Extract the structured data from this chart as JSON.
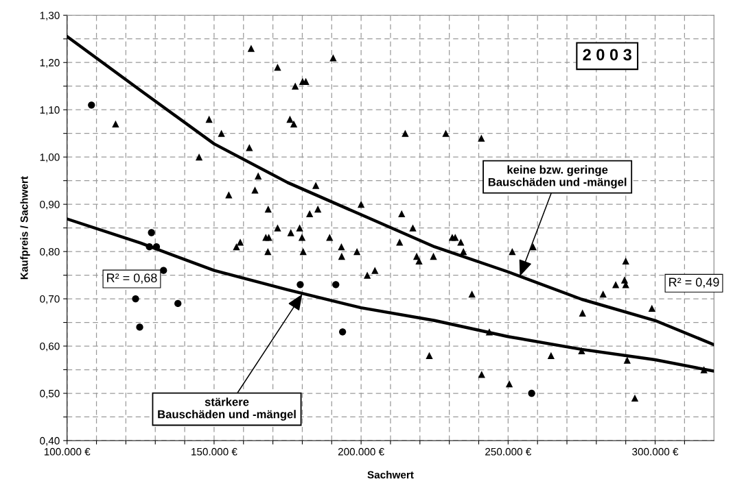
{
  "chart_data": {
    "type": "scatter",
    "xlabel": "Sachwert",
    "ylabel": "Kaufpreis / Sachwert",
    "title": "2 0 0 3",
    "xlim": [
      100000,
      320000
    ],
    "xticks": [
      {
        "value": 100000,
        "label": "100.000 €"
      },
      {
        "value": 110000,
        "label": null
      },
      {
        "value": 120000,
        "label": null
      },
      {
        "value": 130000,
        "label": null
      },
      {
        "value": 140000,
        "label": null
      },
      {
        "value": 150000,
        "label": "150.000 €"
      },
      {
        "value": 160000,
        "label": null
      },
      {
        "value": 170000,
        "label": null
      },
      {
        "value": 180000,
        "label": null
      },
      {
        "value": 190000,
        "label": null
      },
      {
        "value": 200000,
        "label": "200.000 €"
      },
      {
        "value": 210000,
        "label": null
      },
      {
        "value": 220000,
        "label": null
      },
      {
        "value": 230000,
        "label": null
      },
      {
        "value": 240000,
        "label": null
      },
      {
        "value": 250000,
        "label": "250.000 €"
      },
      {
        "value": 260000,
        "label": null
      },
      {
        "value": 270000,
        "label": null
      },
      {
        "value": 280000,
        "label": null
      },
      {
        "value": 290000,
        "label": null
      },
      {
        "value": 300000,
        "label": "300.000 €"
      },
      {
        "value": 310000,
        "label": null
      }
    ],
    "ylim": [
      0.4,
      1.3
    ],
    "yticks": [
      {
        "value": 0.4,
        "label": "0,40"
      },
      {
        "value": 0.45,
        "label": null
      },
      {
        "value": 0.5,
        "label": "0,50"
      },
      {
        "value": 0.55,
        "label": null
      },
      {
        "value": 0.6,
        "label": "0,60"
      },
      {
        "value": 0.65,
        "label": null
      },
      {
        "value": 0.7,
        "label": "0,70"
      },
      {
        "value": 0.75,
        "label": null
      },
      {
        "value": 0.8,
        "label": "0,80"
      },
      {
        "value": 0.85,
        "label": null
      },
      {
        "value": 0.9,
        "label": "0,90"
      },
      {
        "value": 0.95,
        "label": null
      },
      {
        "value": 1.0,
        "label": "1,00"
      },
      {
        "value": 1.05,
        "label": null
      },
      {
        "value": 1.1,
        "label": "1,10"
      },
      {
        "value": 1.15,
        "label": null
      },
      {
        "value": 1.2,
        "label": "1,20"
      },
      {
        "value": 1.25,
        "label": null
      },
      {
        "value": 1.3,
        "label": "1,30"
      }
    ],
    "grid": true,
    "legend": false,
    "series": [
      {
        "type": "scatter",
        "marker": "triangle",
        "color": "#000000",
        "x": [
          162600,
          171600,
          116500,
          148300,
          152500,
          162000,
          144900,
          165000,
          163900,
          155000,
          168400,
          171600,
          167600,
          168600,
          158900,
          157600,
          168300,
          190500,
          177600,
          180100,
          181200,
          175800,
          177100,
          215000,
          228800,
          240900,
          184600,
          200000,
          185300,
          182500,
          213800,
          176100,
          179100,
          217600,
          179900,
          189300,
          213100,
          231000,
          232000,
          233900,
          180300,
          193300,
          193400,
          198600,
          202100,
          204700,
          218900,
          219700,
          224600,
          234800,
          237700,
          243600,
          223200,
          241000,
          251400,
          258500,
          290000,
          289600,
          290000,
          286600,
          282300,
          275300,
          298900,
          264600,
          275000,
          290500,
          316600,
          250400,
          293100
        ],
        "values": [
          1.23,
          1.19,
          1.07,
          1.08,
          1.05,
          1.02,
          1.0,
          0.96,
          0.93,
          0.92,
          0.89,
          0.85,
          0.83,
          0.83,
          0.82,
          0.81,
          0.8,
          1.21,
          1.15,
          1.16,
          1.16,
          1.08,
          1.07,
          1.05,
          1.05,
          1.04,
          0.94,
          0.9,
          0.89,
          0.88,
          0.88,
          0.84,
          0.85,
          0.85,
          0.83,
          0.83,
          0.82,
          0.83,
          0.83,
          0.82,
          0.8,
          0.81,
          0.79,
          0.8,
          0.75,
          0.76,
          0.79,
          0.78,
          0.79,
          0.8,
          0.71,
          0.63,
          0.58,
          0.54,
          0.8,
          0.81,
          0.78,
          0.74,
          0.73,
          0.73,
          0.71,
          0.67,
          0.68,
          0.58,
          0.59,
          0.57,
          0.55,
          0.52,
          0.49
        ]
      },
      {
        "type": "scatter",
        "marker": "circle",
        "color": "#000000",
        "x": [
          108300,
          128700,
          128000,
          130400,
          132800,
          123300,
          124700,
          137700,
          179300,
          191400,
          193700,
          258000
        ],
        "values": [
          1.11,
          0.84,
          0.81,
          0.81,
          0.76,
          0.7,
          0.64,
          0.69,
          0.73,
          0.73,
          0.63,
          0.5
        ]
      },
      {
        "type": "line",
        "marker": "none",
        "line_style": "solid",
        "color": "#000000",
        "x": [
          100000,
          125000,
          150000,
          175000,
          200000,
          225000,
          250000,
          275000,
          300000,
          320000
        ],
        "values": [
          1.255,
          1.141,
          1.028,
          0.946,
          0.878,
          0.81,
          0.757,
          0.699,
          0.654,
          0.603
        ]
      },
      {
        "type": "line",
        "marker": "none",
        "line_style": "solid",
        "color": "#000000",
        "x": [
          100000,
          125000,
          150000,
          175000,
          200000,
          225000,
          250000,
          275000,
          300000,
          320000
        ],
        "values": [
          0.869,
          0.818,
          0.76,
          0.719,
          0.681,
          0.654,
          0.62,
          0.593,
          0.571,
          0.547
        ]
      }
    ],
    "annotations": [
      {
        "text": "keine bzw. geringe\nBauschäden und -mängel",
        "x": 254000,
        "y": 0.748
      },
      {
        "text": "stärkere\nBauschäden und -mängel",
        "x": 180000,
        "y": 0.71
      },
      "R² = 0,68",
      "R² = 0,49"
    ]
  }
}
